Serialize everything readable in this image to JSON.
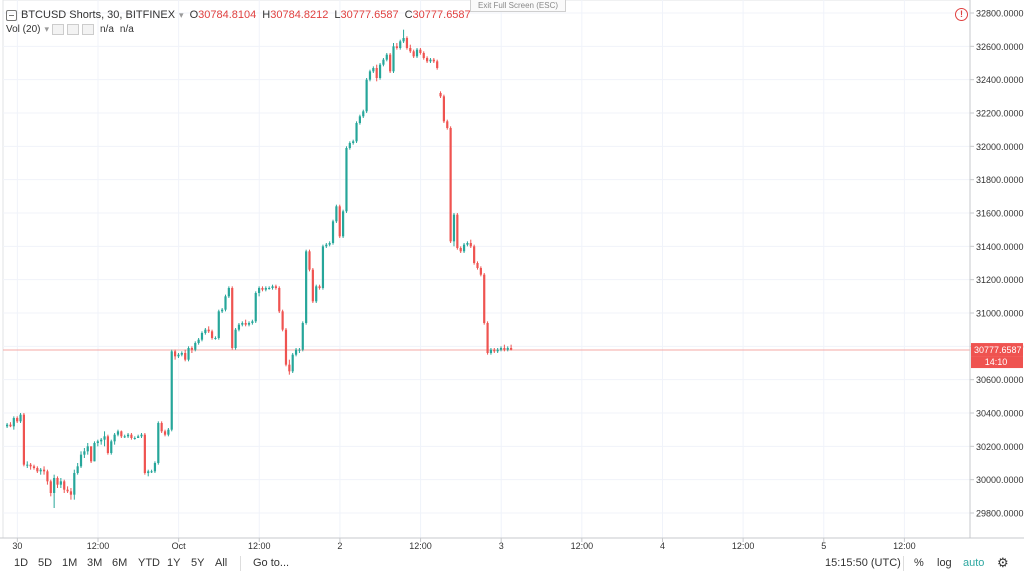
{
  "header": {
    "symbol": "BTCUSD Shorts, 30, BITFINEX",
    "open_label": "O",
    "open": "30784.8104",
    "high_label": "H",
    "high": "30784.8212",
    "low_label": "L",
    "low": "30777.6587",
    "close_label": "C",
    "close": "30777.6587",
    "volume_label": "Vol (20)",
    "volume_value_1": "n/a",
    "volume_value_2": "n/a"
  },
  "exit_fullscreen": "Exit Full Screen (ESC)",
  "bottom_bar": {
    "ranges": [
      "1D",
      "5D",
      "1M",
      "3M",
      "6M",
      "YTD",
      "1Y",
      "5Y",
      "All"
    ],
    "goto": "Go to...",
    "clock": "15:15:50 (UTC)",
    "percent": "%",
    "log": "log",
    "auto": "auto"
  },
  "colors": {
    "up": "#26a69a",
    "down": "#ef5350",
    "grid": "#f0f3fa",
    "axis_text": "#333333",
    "price_tag": "#ef5350"
  },
  "chart_data": {
    "type": "candlestick",
    "title": "BTCUSD Shorts, 30, BITFINEX",
    "ylim": [
      29650,
      32850
    ],
    "y_ticks": [
      "32800.0000",
      "32600.0000",
      "32400.0000",
      "32200.0000",
      "32000.0000",
      "31800.0000",
      "31600.0000",
      "31400.0000",
      "31200.0000",
      "31000.0000",
      "30800.0000",
      "30600.0000",
      "30400.0000",
      "30200.0000",
      "30000.0000",
      "29800.0000"
    ],
    "x_ticks": [
      {
        "label": "30",
        "idx": 1
      },
      {
        "label": "12:00",
        "idx": 25
      },
      {
        "label": "Oct",
        "idx": 49
      },
      {
        "label": "12:00",
        "idx": 73
      },
      {
        "label": "2",
        "idx": 97
      },
      {
        "label": "12:00",
        "idx": 121
      },
      {
        "label": "3",
        "idx": 145
      },
      {
        "label": "12:00",
        "idx": 169
      },
      {
        "label": "4",
        "idx": 193
      },
      {
        "label": "12:00",
        "idx": 217
      },
      {
        "label": "5",
        "idx": 241
      },
      {
        "label": "12:00",
        "idx": 265
      }
    ],
    "last_price": "30777.6587",
    "last_price_value": 30777.6587,
    "countdown": "14:10",
    "candles": [
      [
        30320,
        30340,
        30310,
        30330
      ],
      [
        30330,
        30345,
        30315,
        30320
      ],
      [
        30320,
        30380,
        30300,
        30370
      ],
      [
        30370,
        30380,
        30340,
        30350
      ],
      [
        30350,
        30400,
        30340,
        30390
      ],
      [
        30390,
        30400,
        30080,
        30090
      ],
      [
        30090,
        30110,
        30070,
        30090
      ],
      [
        30090,
        30100,
        30060,
        30080
      ],
      [
        30080,
        30090,
        30060,
        30070
      ],
      [
        30070,
        30080,
        30040,
        30050
      ],
      [
        30050,
        30070,
        30030,
        30060
      ],
      [
        30060,
        30080,
        30030,
        30050
      ],
      [
        30050,
        30060,
        29970,
        29990
      ],
      [
        29990,
        30000,
        29900,
        29920
      ],
      [
        29920,
        30030,
        29830,
        30010
      ],
      [
        30010,
        30020,
        29950,
        29970
      ],
      [
        29970,
        30010,
        29950,
        29990
      ],
      [
        29990,
        30000,
        29920,
        29940
      ],
      [
        29940,
        29960,
        29920,
        29930
      ],
      [
        29930,
        29950,
        29880,
        29910
      ],
      [
        29910,
        30060,
        29880,
        30040
      ],
      [
        30040,
        30100,
        30030,
        30080
      ],
      [
        30080,
        30170,
        30070,
        30150
      ],
      [
        30150,
        30190,
        30130,
        30170
      ],
      [
        30170,
        30220,
        30150,
        30200
      ],
      [
        30200,
        30200,
        30100,
        30110
      ],
      [
        30110,
        30230,
        30110,
        30220
      ],
      [
        30220,
        30240,
        30200,
        30230
      ],
      [
        30230,
        30250,
        30210,
        30240
      ],
      [
        30240,
        30290,
        30200,
        30260
      ],
      [
        30260,
        30270,
        30150,
        30160
      ],
      [
        30160,
        30240,
        30150,
        30230
      ],
      [
        30230,
        30280,
        30210,
        30270
      ],
      [
        30270,
        30300,
        30260,
        30290
      ],
      [
        30290,
        30295,
        30250,
        30260
      ],
      [
        30260,
        30270,
        30250,
        30260
      ],
      [
        30260,
        30280,
        30250,
        30270
      ],
      [
        30270,
        30280,
        30240,
        30250
      ],
      [
        30250,
        30260,
        30240,
        30250
      ],
      [
        30250,
        30270,
        30250,
        30260
      ],
      [
        30260,
        30280,
        30250,
        30270
      ],
      [
        30270,
        30280,
        30030,
        30040
      ],
      [
        30040,
        30060,
        30020,
        30050
      ],
      [
        30050,
        30060,
        30040,
        30050
      ],
      [
        30050,
        30110,
        30040,
        30100
      ],
      [
        30100,
        30350,
        30090,
        30340
      ],
      [
        30340,
        30350,
        30280,
        30290
      ],
      [
        30290,
        30300,
        30260,
        30270
      ],
      [
        30270,
        30310,
        30260,
        30300
      ],
      [
        30300,
        30780,
        30290,
        30770
      ],
      [
        30770,
        30780,
        30720,
        30740
      ],
      [
        30740,
        30760,
        30730,
        30750
      ],
      [
        30750,
        30770,
        30740,
        30760
      ],
      [
        30760,
        30780,
        30710,
        30720
      ],
      [
        30720,
        30800,
        30710,
        30790
      ],
      [
        30790,
        30800,
        30760,
        30780
      ],
      [
        30780,
        30830,
        30770,
        30820
      ],
      [
        30820,
        30850,
        30810,
        30840
      ],
      [
        30840,
        30890,
        30830,
        30880
      ],
      [
        30880,
        30910,
        30870,
        30900
      ],
      [
        30900,
        30920,
        30880,
        30890
      ],
      [
        30890,
        30900,
        30840,
        30850
      ],
      [
        30850,
        30860,
        30840,
        30850
      ],
      [
        30850,
        31020,
        30840,
        31010
      ],
      [
        31010,
        31030,
        31000,
        31020
      ],
      [
        31020,
        31110,
        31010,
        31100
      ],
      [
        31100,
        31160,
        31090,
        31150
      ],
      [
        31150,
        31160,
        30780,
        30790
      ],
      [
        30790,
        30910,
        30780,
        30900
      ],
      [
        30900,
        30940,
        30890,
        30930
      ],
      [
        30930,
        30950,
        30920,
        30940
      ],
      [
        30940,
        30960,
        30920,
        30930
      ],
      [
        30930,
        30950,
        30920,
        30940
      ],
      [
        30940,
        30960,
        30930,
        30950
      ],
      [
        30950,
        31130,
        30940,
        31120
      ],
      [
        31120,
        31160,
        31100,
        31150
      ],
      [
        31150,
        31160,
        31130,
        31140
      ],
      [
        31140,
        31160,
        31130,
        31150
      ],
      [
        31150,
        31160,
        31140,
        31150
      ],
      [
        31150,
        31170,
        31140,
        31160
      ],
      [
        31160,
        31170,
        31140,
        31150
      ],
      [
        31150,
        31160,
        31000,
        31010
      ],
      [
        31010,
        31020,
        30890,
        30900
      ],
      [
        30900,
        30910,
        30680,
        30690
      ],
      [
        30690,
        30720,
        30630,
        30650
      ],
      [
        30650,
        30760,
        30640,
        30750
      ],
      [
        30750,
        30790,
        30740,
        30780
      ],
      [
        30780,
        30790,
        30760,
        30780
      ],
      [
        30780,
        30950,
        30770,
        30940
      ],
      [
        30940,
        31380,
        30930,
        31370
      ],
      [
        31370,
        31380,
        31250,
        31260
      ],
      [
        31260,
        31270,
        31060,
        31070
      ],
      [
        31070,
        31170,
        31060,
        31160
      ],
      [
        31160,
        31170,
        31140,
        31150
      ],
      [
        31150,
        31410,
        31140,
        31400
      ],
      [
        31400,
        31420,
        31390,
        31410
      ],
      [
        31410,
        31430,
        31400,
        31420
      ],
      [
        31420,
        31560,
        31410,
        31550
      ],
      [
        31550,
        31650,
        31540,
        31640
      ],
      [
        31640,
        31650,
        31450,
        31460
      ],
      [
        31460,
        31620,
        31450,
        31610
      ],
      [
        31610,
        32000,
        31600,
        31990
      ],
      [
        31990,
        32030,
        31980,
        32020
      ],
      [
        32020,
        32040,
        32010,
        32030
      ],
      [
        32030,
        32150,
        32020,
        32140
      ],
      [
        32140,
        32190,
        32130,
        32180
      ],
      [
        32180,
        32220,
        32170,
        32210
      ],
      [
        32210,
        32410,
        32200,
        32400
      ],
      [
        32400,
        32460,
        32390,
        32450
      ],
      [
        32450,
        32480,
        32440,
        32470
      ],
      [
        32470,
        32490,
        32390,
        32410
      ],
      [
        32410,
        32500,
        32400,
        32490
      ],
      [
        32490,
        32530,
        32480,
        32520
      ],
      [
        32520,
        32560,
        32510,
        32550
      ],
      [
        32550,
        32560,
        32440,
        32450
      ],
      [
        32450,
        32620,
        32440,
        32600
      ],
      [
        32600,
        32620,
        32580,
        32590
      ],
      [
        32590,
        32640,
        32580,
        32630
      ],
      [
        32630,
        32700,
        32620,
        32650
      ],
      [
        32650,
        32660,
        32580,
        32590
      ],
      [
        32590,
        32610,
        32560,
        32570
      ],
      [
        32570,
        32580,
        32530,
        32540
      ],
      [
        32540,
        32590,
        32530,
        32580
      ],
      [
        32580,
        32590,
        32550,
        32560
      ],
      [
        32560,
        32570,
        32520,
        32530
      ],
      [
        32530,
        32540,
        32500,
        32510
      ],
      [
        32510,
        32530,
        32500,
        32520
      ],
      [
        32520,
        32530,
        32500,
        32510
      ],
      [
        32510,
        32520,
        32460,
        32470
      ],
      [
        32320,
        32330,
        32290,
        32300
      ],
      [
        32300,
        32310,
        32140,
        32150
      ],
      [
        32150,
        32160,
        32100,
        32110
      ],
      [
        32110,
        32120,
        31420,
        31430
      ],
      [
        31430,
        31600,
        31400,
        31590
      ],
      [
        31590,
        31600,
        31380,
        31390
      ],
      [
        31390,
        31400,
        31360,
        31370
      ],
      [
        31370,
        31420,
        31360,
        31410
      ],
      [
        31410,
        31430,
        31400,
        31420
      ],
      [
        31420,
        31440,
        31390,
        31400
      ],
      [
        31400,
        31410,
        31290,
        31300
      ],
      [
        31300,
        31310,
        31260,
        31270
      ],
      [
        31270,
        31280,
        31220,
        31230
      ],
      [
        31230,
        31240,
        30930,
        30940
      ],
      [
        30940,
        30950,
        30750,
        30760
      ],
      [
        30760,
        30790,
        30750,
        30780
      ],
      [
        30780,
        30790,
        30760,
        30770
      ],
      [
        30770,
        30790,
        30760,
        30780
      ],
      [
        30780,
        30800,
        30770,
        30790
      ],
      [
        30790,
        30810,
        30770,
        30780
      ],
      [
        30780,
        30800,
        30770,
        30790
      ],
      [
        30790,
        30810,
        30775,
        30780
      ]
    ]
  }
}
